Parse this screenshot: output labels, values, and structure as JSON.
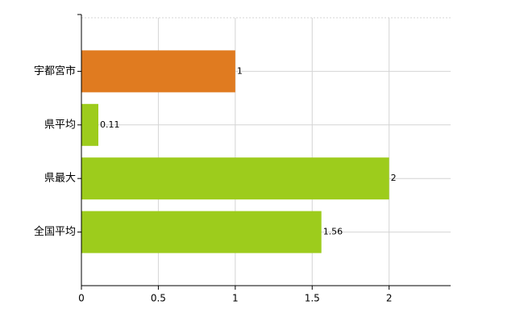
{
  "chart_data": {
    "type": "bar",
    "orientation": "horizontal",
    "categories": [
      "宇都宮市",
      "県平均",
      "県最大",
      "全国平均"
    ],
    "values": [
      1,
      0.11,
      2,
      1.56
    ],
    "colors": [
      "#e07b20",
      "#9dcc1c",
      "#9dcc1c",
      "#9dcc1c"
    ],
    "xlim": [
      0,
      2.4
    ],
    "xticks": [
      0,
      0.5,
      1,
      1.5,
      2
    ],
    "grid": true
  }
}
